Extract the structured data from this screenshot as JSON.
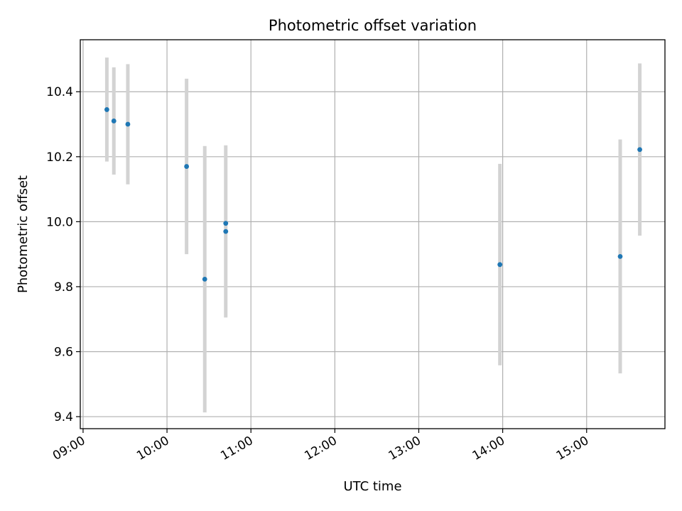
{
  "chart_data": {
    "type": "scatter",
    "title": "Photometric offset variation",
    "xlabel": "UTC time",
    "ylabel": "Photometric offset",
    "x_ticks": [
      "09:00",
      "10:00",
      "11:00",
      "12:00",
      "13:00",
      "14:00",
      "15:00"
    ],
    "y_ticks": [
      "9.4",
      "9.6",
      "9.8",
      "10.0",
      "10.2",
      "10.4"
    ],
    "xlim": [
      "08:58",
      "15:56"
    ],
    "ylim": [
      9.363,
      10.56
    ],
    "grid": true,
    "points": [
      {
        "x": "09:17",
        "y": 10.345,
        "err": 0.16
      },
      {
        "x": "09:22",
        "y": 10.31,
        "err": 0.165
      },
      {
        "x": "09:32",
        "y": 10.3,
        "err": 0.185
      },
      {
        "x": "10:14",
        "y": 10.17,
        "err": 0.27
      },
      {
        "x": "10:27",
        "y": 9.823,
        "err": 0.41
      },
      {
        "x": "10:42",
        "y": 9.995,
        "err": 0.0
      },
      {
        "x": "10:42",
        "y": 9.97,
        "err": 0.265
      },
      {
        "x": "13:58",
        "y": 9.868,
        "err": 0.31
      },
      {
        "x": "15:24",
        "y": 9.893,
        "err": 0.36
      },
      {
        "x": "15:38",
        "y": 10.222,
        "err": 0.265
      }
    ],
    "point_color": "#1f77b4",
    "errorbar_color": "#d3d3d3"
  }
}
